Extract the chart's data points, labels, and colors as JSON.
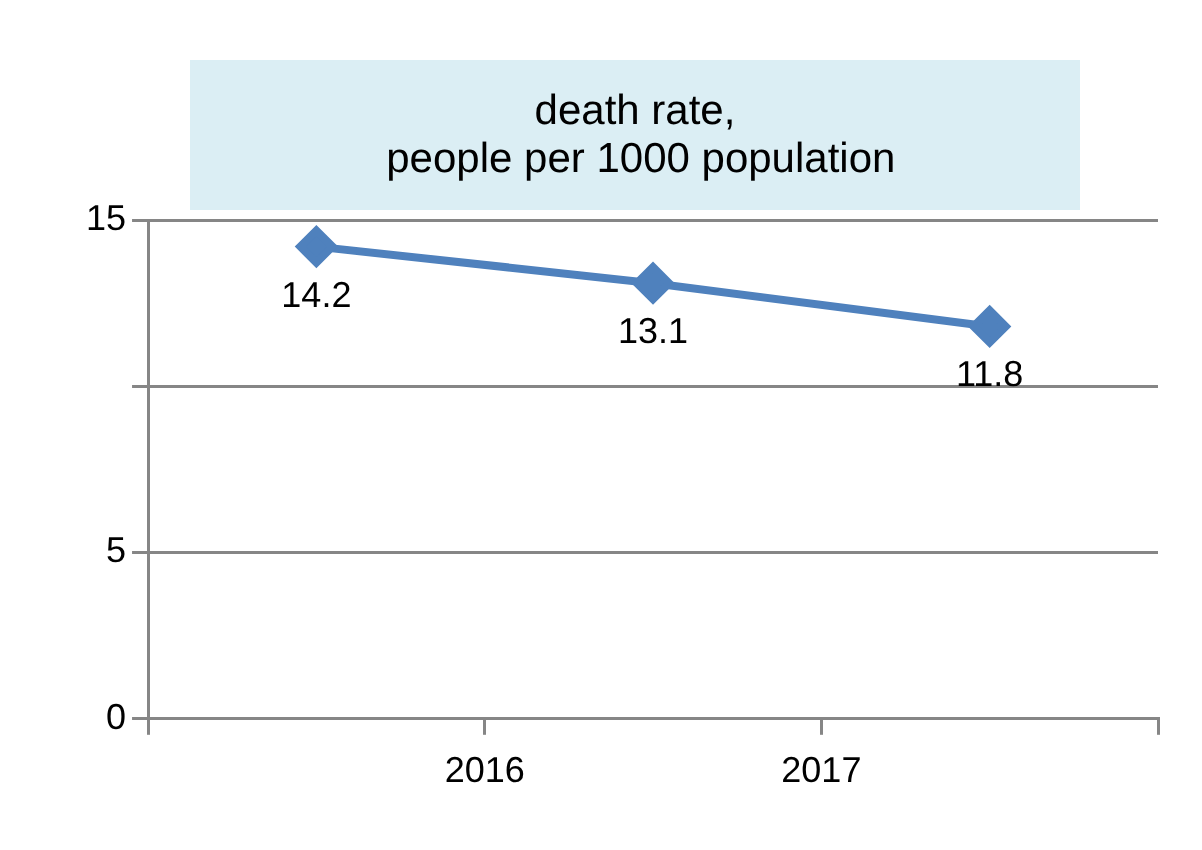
{
  "chart_data": {
    "type": "line",
    "title": "death rate,\n people per 1000 population",
    "x": [
      2015.5,
      2016.5,
      2017.5
    ],
    "series": [
      {
        "color": "#4f81bd",
        "values": [
          14.2,
          13.1,
          11.8
        ]
      }
    ],
    "xlim": [
      2015,
      2018
    ],
    "xticks": [
      {
        "value": 2015,
        "label": null
      },
      2016,
      2017,
      {
        "value": 2018,
        "label": null
      }
    ],
    "ylim": [
      0,
      15
    ],
    "yticks": [
      0,
      5,
      {
        "value": 10,
        "label": null
      },
      15
    ],
    "grid": "y",
    "marker": "diamond",
    "line_style": "solid",
    "data_labels": true,
    "legend": false
  }
}
